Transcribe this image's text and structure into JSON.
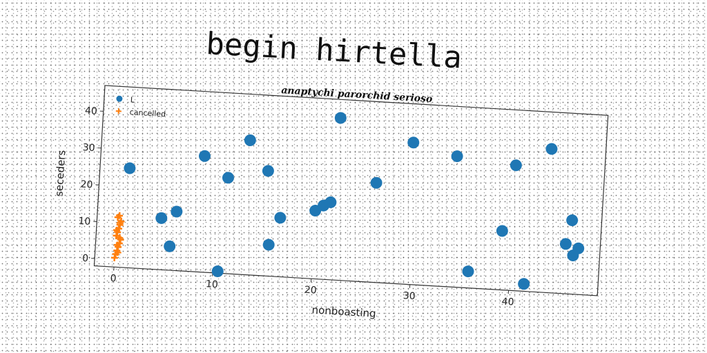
{
  "page": {
    "title": "begin hirtella"
  },
  "chart_data": {
    "type": "scatter",
    "title": "anaptychi parorchid serioso",
    "xlabel": "nonboasting",
    "ylabel": "seceders",
    "xlim": [
      -2,
      49
    ],
    "ylim": [
      -2,
      47
    ],
    "xticks": [
      0,
      10,
      20,
      30,
      40
    ],
    "yticks": [
      0,
      10,
      20,
      30,
      40
    ],
    "grid": false,
    "legend_position": "top-left",
    "series": [
      {
        "name": "L",
        "marker": "circle",
        "color": "#1f77b4",
        "x": [
          1,
          4.5,
          5.5,
          6,
          8.5,
          10.5,
          11,
          13,
          15,
          15.5,
          16.5,
          20,
          20.8,
          21.5,
          22,
          26,
          29.5,
          34,
          35.8,
          39,
          40,
          41.5,
          43.5,
          45.5,
          46,
          46.3,
          46.8
        ],
        "y": [
          25,
          12,
          4.5,
          14,
          29.5,
          -1.5,
          24,
          34.5,
          26.5,
          6.5,
          14,
          16.5,
          18,
          19,
          42,
          25,
          36.5,
          33.5,
          2.5,
          14,
          32,
          0,
          37,
          11.5,
          18,
          8.5,
          10.5
        ]
      },
      {
        "name": "cancelled",
        "marker": "plus",
        "color": "#ff7f0e",
        "x": [
          0,
          0.1,
          0.2,
          0.3,
          0.4,
          0.5,
          0.05,
          0.15,
          0.25,
          0.35,
          0.45,
          0.1,
          0.3,
          0.2,
          0.4,
          0.05,
          0.35,
          0.25
        ],
        "y": [
          0.5,
          1.5,
          2.5,
          3.5,
          4.5,
          5.5,
          6.5,
          7.5,
          8.5,
          9.5,
          10.5,
          11.5,
          2,
          4,
          6,
          8,
          10,
          12
        ]
      }
    ]
  }
}
